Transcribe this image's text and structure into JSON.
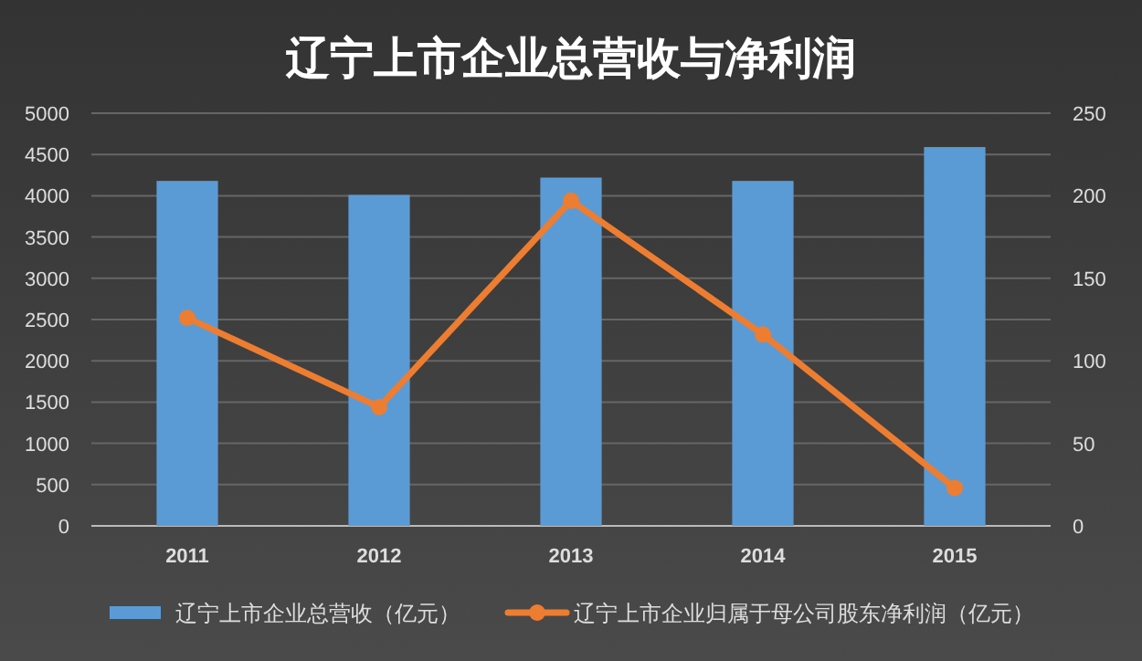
{
  "chart_data": {
    "type": "bar",
    "title": "辽宁上市企业总营收与净利润",
    "categories": [
      "2011",
      "2012",
      "2013",
      "2014",
      "2015"
    ],
    "series": [
      {
        "name": "辽宁上市企业总营收（亿元）",
        "color": "#5b9bd5",
        "values": [
          4180,
          4010,
          4220,
          4180,
          4590
        ]
      },
      {
        "name": "辽宁上市企业归属于母公司股东净利润（亿元）",
        "color": "#ed7d31",
        "type": "line",
        "axis": "y2",
        "marker": "circle",
        "values": [
          126,
          72,
          197,
          116,
          23
        ]
      }
    ],
    "ylim": [
      0,
      5000
    ],
    "yticks": [
      0,
      500,
      1000,
      1500,
      2000,
      2500,
      3000,
      3500,
      4000,
      4500,
      5000
    ],
    "y2lim": [
      0,
      250
    ],
    "y2ticks": [
      0,
      50,
      100,
      150,
      200,
      250
    ],
    "grid": "y",
    "legend": "bottom"
  }
}
